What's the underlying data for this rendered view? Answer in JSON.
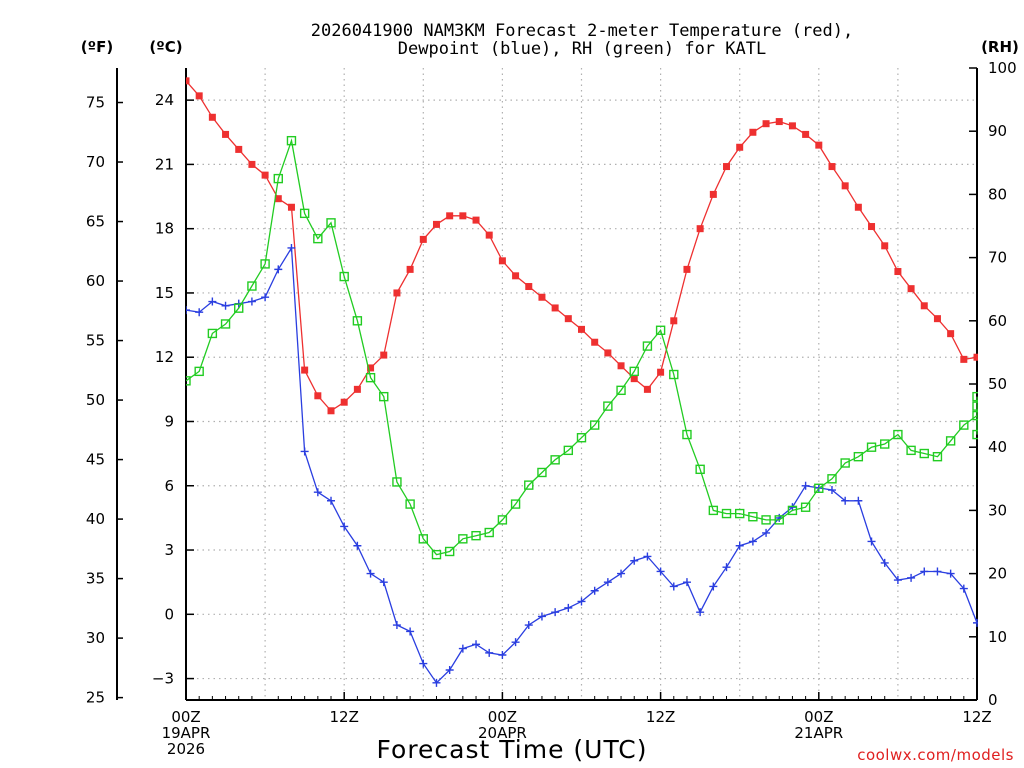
{
  "chart_data": {
    "type": "line",
    "title_lines": [
      "2026041900 NAM3KM Forecast 2-meter Temperature (red),",
      "Dewpoint (blue), RH (green) for KATL"
    ],
    "xlabel": "Forecast Time (UTC)",
    "credit": "coolwx.com/models",
    "x_unit": "forecast hour",
    "x_range": [
      0,
      60
    ],
    "x_ticks": [
      {
        "hour": 0,
        "lines": [
          "00Z",
          "19APR",
          "2026"
        ]
      },
      {
        "hour": 12,
        "lines": [
          "12Z"
        ]
      },
      {
        "hour": 24,
        "lines": [
          "00Z",
          "20APR"
        ]
      },
      {
        "hour": 36,
        "lines": [
          "12Z"
        ]
      },
      {
        "hour": 48,
        "lines": [
          "00Z",
          "21APR"
        ]
      },
      {
        "hour": 60,
        "lines": [
          "12Z"
        ]
      }
    ],
    "grid_x_hours": [
      6,
      12,
      18,
      24,
      30,
      36,
      42,
      48,
      54
    ],
    "left_axis_c": {
      "label": "(ºC)",
      "range": [
        -4,
        25.5
      ],
      "ticks": [
        "−3",
        "0",
        "3",
        "6",
        "9",
        "12",
        "15",
        "18",
        "21",
        "24"
      ]
    },
    "left_axis_f": {
      "label": "(ºF)",
      "range": [
        24.8,
        77.9
      ],
      "ticks": [
        "25",
        "30",
        "35",
        "40",
        "45",
        "50",
        "55",
        "60",
        "65",
        "70",
        "75"
      ]
    },
    "right_axis_rh": {
      "label": "(RH)",
      "range": [
        0,
        100
      ],
      "ticks": [
        "0",
        "10",
        "20",
        "30",
        "40",
        "50",
        "60",
        "70",
        "80",
        "90",
        "100"
      ]
    },
    "series": [
      {
        "name": "2-meter Temperature",
        "unit": "°C",
        "color": "#ee3030",
        "marker": "filled-square",
        "axis": "celsius",
        "values": [
          24.9,
          24.2,
          23.2,
          22.4,
          21.7,
          21.0,
          20.5,
          19.4,
          19.0,
          11.4,
          10.2,
          9.5,
          9.9,
          10.5,
          11.5,
          12.1,
          15.0,
          16.1,
          17.5,
          18.2,
          18.6,
          18.6,
          18.4,
          17.7,
          16.5,
          15.8,
          15.3,
          14.8,
          14.3,
          13.8,
          13.3,
          12.7,
          12.2,
          11.6,
          11.0,
          10.5,
          11.3,
          13.7,
          16.1,
          18.0,
          19.6,
          20.9,
          21.8,
          22.5,
          22.9,
          23.0,
          22.8,
          22.4,
          21.9,
          20.9,
          20.0,
          19.0,
          18.1,
          17.2,
          16.0,
          15.2,
          14.4,
          13.8,
          13.1,
          11.9,
          12.0
        ],
        "last_point_partial": true
      },
      {
        "name": "Dewpoint",
        "unit": "°C",
        "color": "#2a3ee0",
        "marker": "plus",
        "axis": "celsius",
        "values": [
          14.2,
          14.1,
          14.6,
          14.4,
          14.5,
          14.6,
          14.8,
          16.1,
          17.1,
          7.6,
          5.7,
          5.3,
          4.1,
          3.2,
          1.9,
          1.5,
          -0.5,
          -0.8,
          -2.3,
          -3.2,
          -2.6,
          -1.6,
          -1.4,
          -1.8,
          -1.9,
          -1.3,
          -0.5,
          -0.1,
          0.1,
          0.3,
          0.6,
          1.1,
          1.5,
          1.9,
          2.5,
          2.7,
          2.0,
          1.3,
          1.5,
          0.1,
          1.3,
          2.2,
          3.2,
          3.4,
          3.8,
          4.5,
          5.0,
          6.0,
          5.9,
          5.8,
          5.3,
          5.3,
          3.4,
          2.4,
          1.6,
          1.7,
          2.0,
          2.0,
          1.9,
          1.2,
          -0.4
        ],
        "last_point_partial": true
      },
      {
        "name": "RH",
        "unit": "%",
        "color": "#22cc22",
        "marker": "open-square",
        "axis": "rh",
        "values": [
          50.5,
          52.0,
          58.0,
          59.5,
          62.0,
          65.5,
          69.0,
          82.5,
          88.5,
          77.0,
          73.0,
          75.5,
          67.0,
          60.0,
          51.0,
          48.0,
          34.5,
          31.0,
          25.5,
          23.0,
          23.5,
          25.5,
          26.0,
          26.5,
          28.5,
          31.0,
          34.0,
          36.0,
          38.0,
          39.5,
          41.5,
          43.5,
          46.5,
          49.0,
          52.0,
          56.0,
          58.5,
          51.5,
          42.0,
          36.5,
          30.0,
          29.5,
          29.5,
          29.0,
          28.5,
          28.5,
          30.0,
          30.5,
          33.5,
          35.0,
          37.5,
          38.5,
          40.0,
          40.5,
          42.0,
          39.5,
          39.0,
          38.5,
          41.0,
          43.5,
          45.0
        ],
        "extra_values_after": [
          46.5,
          48.0,
          42.0
        ]
      }
    ]
  }
}
